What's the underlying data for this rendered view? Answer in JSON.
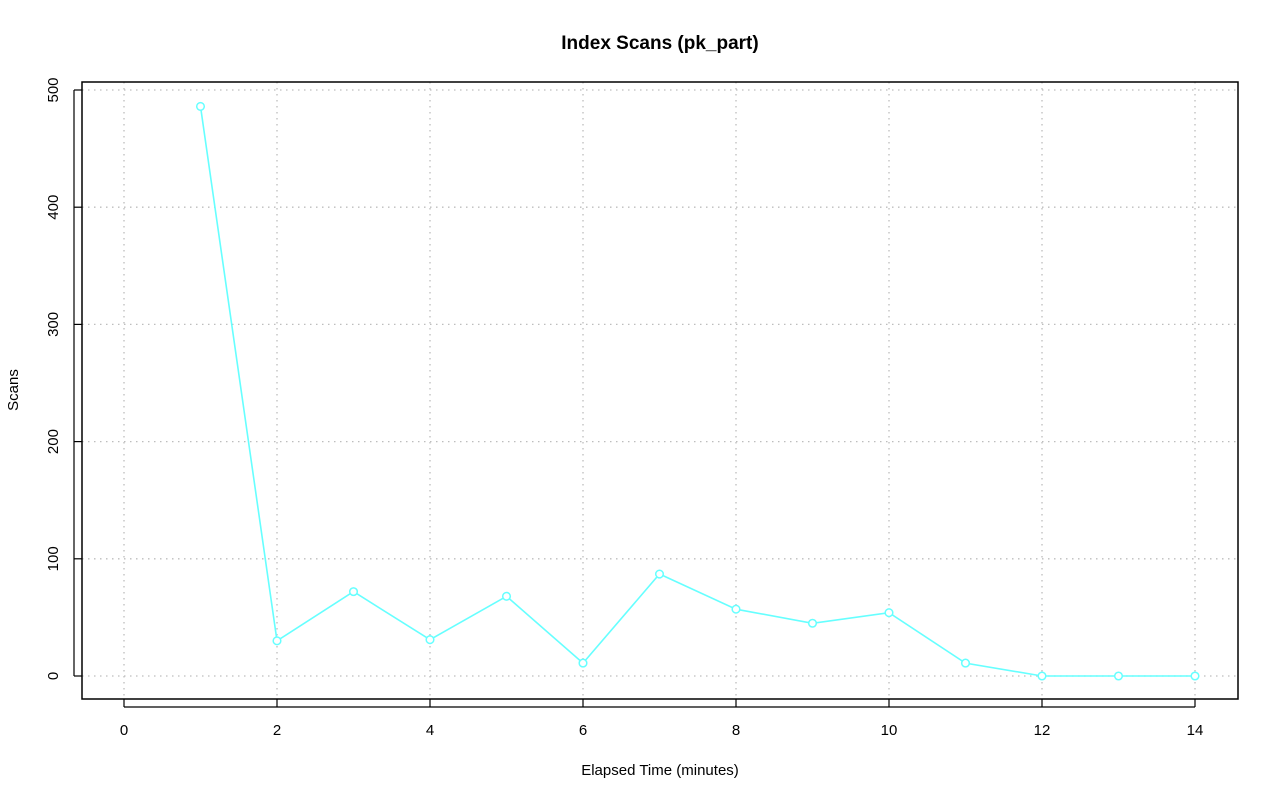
{
  "chart_data": {
    "type": "line",
    "title": "Index Scans (pk_part)",
    "xlabel": "Elapsed Time (minutes)",
    "ylabel": "Scans",
    "xlim": [
      0,
      14
    ],
    "ylim": [
      0,
      500
    ],
    "x_ticks": [
      0,
      2,
      4,
      6,
      8,
      10,
      12,
      14
    ],
    "y_ticks": [
      0,
      100,
      200,
      300,
      400,
      500
    ],
    "grid": true,
    "series": [
      {
        "color": "#66ffff",
        "marker": "circle",
        "x": [
          1,
          2,
          3,
          4,
          5,
          6,
          7,
          8,
          9,
          10,
          11,
          12,
          13,
          14
        ],
        "y": [
          486,
          30,
          72,
          31,
          68,
          11,
          87,
          57,
          45,
          54,
          11,
          0,
          0,
          0
        ]
      }
    ]
  }
}
